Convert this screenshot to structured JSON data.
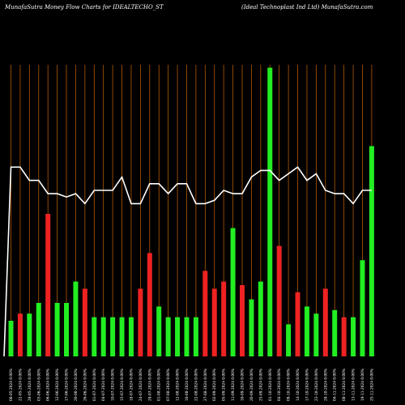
{
  "title_left": "MunafaSutra  Money Flow  Charts for IDEALTECHO_ST",
  "title_right": "(Ideal Technoplast Ind Ltd) MunafaSutra.com",
  "colors": {
    "background": "#000000",
    "grid": "#b35a00",
    "up": "#22ee22",
    "down": "#ee2222",
    "line": "#ffffff"
  },
  "chart_data": {
    "type": "bar",
    "grid": "vertical",
    "categories": [
      "08-05-2024 0.00%",
      "22-05-2024 0.00%",
      "28-05-2024 0.00%",
      "03-06-2024 0.00%",
      "06-06-2024 0.00%",
      "12-06-2024 0.00%",
      "17-06-2024 0.00%",
      "20-06-2024 0.00%",
      "26-06-2024 0.00%",
      "01-07-2024 0.00%",
      "04-07-2024 0.00%",
      "10-07-2024 0.00%",
      "15-07-2024 0.00%",
      "18-07-2024 0.00%",
      "24-07-2024 0.00%",
      "29-07-2024 0.00%",
      "01-08-2024 0.00%",
      "07-08-2024 0.00%",
      "12-08-2024 0.00%",
      "16-08-2024 0.00%",
      "22-08-2024 0.00%",
      "27-08-2024 0.00%",
      "02-09-2024 0.00%",
      "05-09-2024 0.00%",
      "11-09-2024 0.00%",
      "16-09-2024 0.00%",
      "20-09-2024 0.00%",
      "25-09-2024 0.00%",
      "01-10-2024 0.00%",
      "04-10-2024 0.00%",
      "09-10-2024 0.00%",
      "14-10-2024 0.00%",
      "17-10-2024 0.00%",
      "23-10-2024 0.00%",
      "28-10-2024 0.00%",
      "04-11-2024 0.00%",
      "08-11-2024 0.00%",
      "13-11-2024 0.00%",
      "19-11-2024 0.00%",
      "25-11-2024 0.00%"
    ],
    "bar_values": [
      10,
      12,
      12,
      15,
      40,
      15,
      15,
      21,
      19,
      11,
      11,
      11,
      11,
      11,
      19,
      29,
      14,
      11,
      11,
      11,
      11,
      24,
      19,
      21,
      36,
      20,
      16,
      21,
      81,
      31,
      9,
      18,
      14,
      12,
      19,
      13,
      11,
      11,
      27,
      59
    ],
    "bar_colors": [
      "green",
      "red",
      "green",
      "green",
      "red",
      "green",
      "green",
      "green",
      "red",
      "green",
      "green",
      "green",
      "green",
      "green",
      "red",
      "red",
      "green",
      "green",
      "green",
      "green",
      "green",
      "red",
      "red",
      "red",
      "green",
      "red",
      "green",
      "green",
      "green",
      "red",
      "green",
      "red",
      "green",
      "green",
      "red",
      "green",
      "red",
      "green",
      "green",
      "green"
    ],
    "line_values": [
      57,
      57,
      53,
      53,
      49,
      49,
      48,
      49,
      46,
      50,
      50,
      50,
      54,
      46,
      46,
      52,
      52,
      49,
      52,
      52,
      46,
      46,
      47,
      50,
      49,
      49,
      54,
      56,
      56,
      53,
      55,
      57,
      53,
      55,
      50,
      49,
      49,
      46,
      50,
      50
    ]
  }
}
